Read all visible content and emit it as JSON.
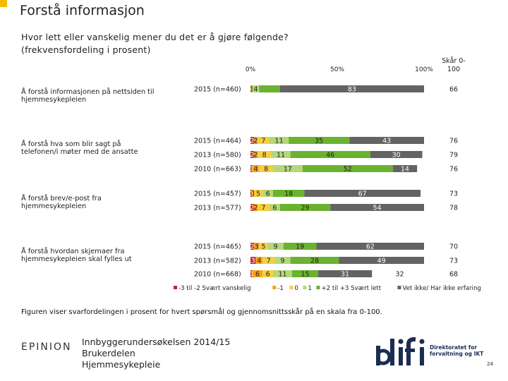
{
  "page": {
    "title": "Forstå informasjon",
    "subtitle_line1": "Hvor lett eller vanskelig mener du det er å gjøre følgende?",
    "subtitle_line2": "(frekvensfordeling i prosent)",
    "footnote": "Figuren viser svarfordelingen i prosent for hvert spørsmål og gjennomsnittsskår på en skala fra 0-100.",
    "footer_line1": "Innbyggerundersøkelsen 2014/15",
    "footer_line2": "Brukerdelen",
    "footer_line3": "Hjemmesykepleie",
    "epinion": "EPINION",
    "difi_text": "Direktoratet for forvaltning og IKT",
    "page_number": "24"
  },
  "chart_data": {
    "type": "bar",
    "orientation": "horizontal-stacked",
    "title": "Hvor lett eller vanskelig mener du det er å gjøre følgende? (frekvensfordeling i prosent)",
    "axis_ticks": [
      "0%",
      "50%",
      "100%"
    ],
    "xlim": [
      0,
      100
    ],
    "score_header": "Skår 0-100",
    "legend": [
      {
        "label": "-3 til -2 Svært vanskelig",
        "color": "#c0272d"
      },
      {
        "label": "-1",
        "color": "#f7a21b"
      },
      {
        "label": "0",
        "color": "#f3d03e"
      },
      {
        "label": "1",
        "color": "#b4d77a"
      },
      {
        "label": "+2 til +3 Svært lett",
        "color": "#6ab22f"
      },
      {
        "label": "Vet ikke/ Har ikke erfaring",
        "color": "#636363"
      }
    ],
    "groups": [
      {
        "label": "Å forstå informasjonen på nettsiden til hjemmesykepleien",
        "rows": [
          {
            "year": "2015 (n=460)",
            "values": [
              0,
              1,
              0,
              4,
              12,
              83
            ],
            "labels": [
              "",
              "1",
              "",
              "4",
              "",
              "83"
            ],
            "inline_label": "1 4 12",
            "score": "66"
          }
        ]
      },
      {
        "label": "Å forstå hva som blir sagt på telefonen/i møter med de ansatte",
        "rows": [
          {
            "year": "2015 (n=464)",
            "values": [
              2,
              2,
              7,
              11,
              35,
              43
            ],
            "labels": [
              "2",
              "2",
              "7",
              "11",
              "35",
              "43"
            ],
            "score": "76"
          },
          {
            "year": "2013 (n=580)",
            "values": [
              2,
              2,
              8,
              11,
              46,
              30
            ],
            "labels": [
              "2",
              "2",
              "8",
              "11",
              "46",
              "30"
            ],
            "score": "79"
          },
          {
            "year": "2010 (n=663)",
            "values": [
              1,
              4,
              8,
              17,
              52,
              14
            ],
            "labels": [
              "1",
              "4",
              "8",
              "17",
              "52",
              "14"
            ],
            "score": "76"
          }
        ]
      },
      {
        "label": "Å forstå brev/e-post fra hjemmesykepleien",
        "rows": [
          {
            "year": "2015 (n=457)",
            "values": [
              1,
              1,
              5,
              6,
              18,
              67
            ],
            "labels": [
              "1",
              "1",
              "5",
              "6",
              "18",
              "67"
            ],
            "score": "73"
          },
          {
            "year": "2013 (n=577)",
            "values": [
              2,
              2,
              7,
              6,
              29,
              54
            ],
            "labels": [
              "2",
              "2",
              "7",
              "6",
              "29",
              "54"
            ],
            "score": "78"
          }
        ]
      },
      {
        "label": "Å forstå hvordan skjemaer fra hjemmesykepleien skal fylles ut",
        "rows": [
          {
            "year": "2015 (n=465)",
            "values": [
              2,
              3,
              5,
              9,
              19,
              62
            ],
            "labels": [
              "2",
              "3",
              "5",
              "9",
              "19",
              "62"
            ],
            "score": "70"
          },
          {
            "year": "2013 (n=582)",
            "values": [
              3,
              4,
              7,
              9,
              28,
              49
            ],
            "labels": [
              "3",
              "4",
              "7",
              "9",
              "28",
              "49"
            ],
            "score": "73"
          },
          {
            "year": "2010 (n=668)",
            "values": [
              1,
              6,
              6,
              11,
              15,
              31
            ],
            "labels": [
              "1",
              "6",
              "6",
              "11",
              "15",
              "31"
            ],
            "extra": "32",
            "score": "68"
          }
        ]
      }
    ]
  }
}
